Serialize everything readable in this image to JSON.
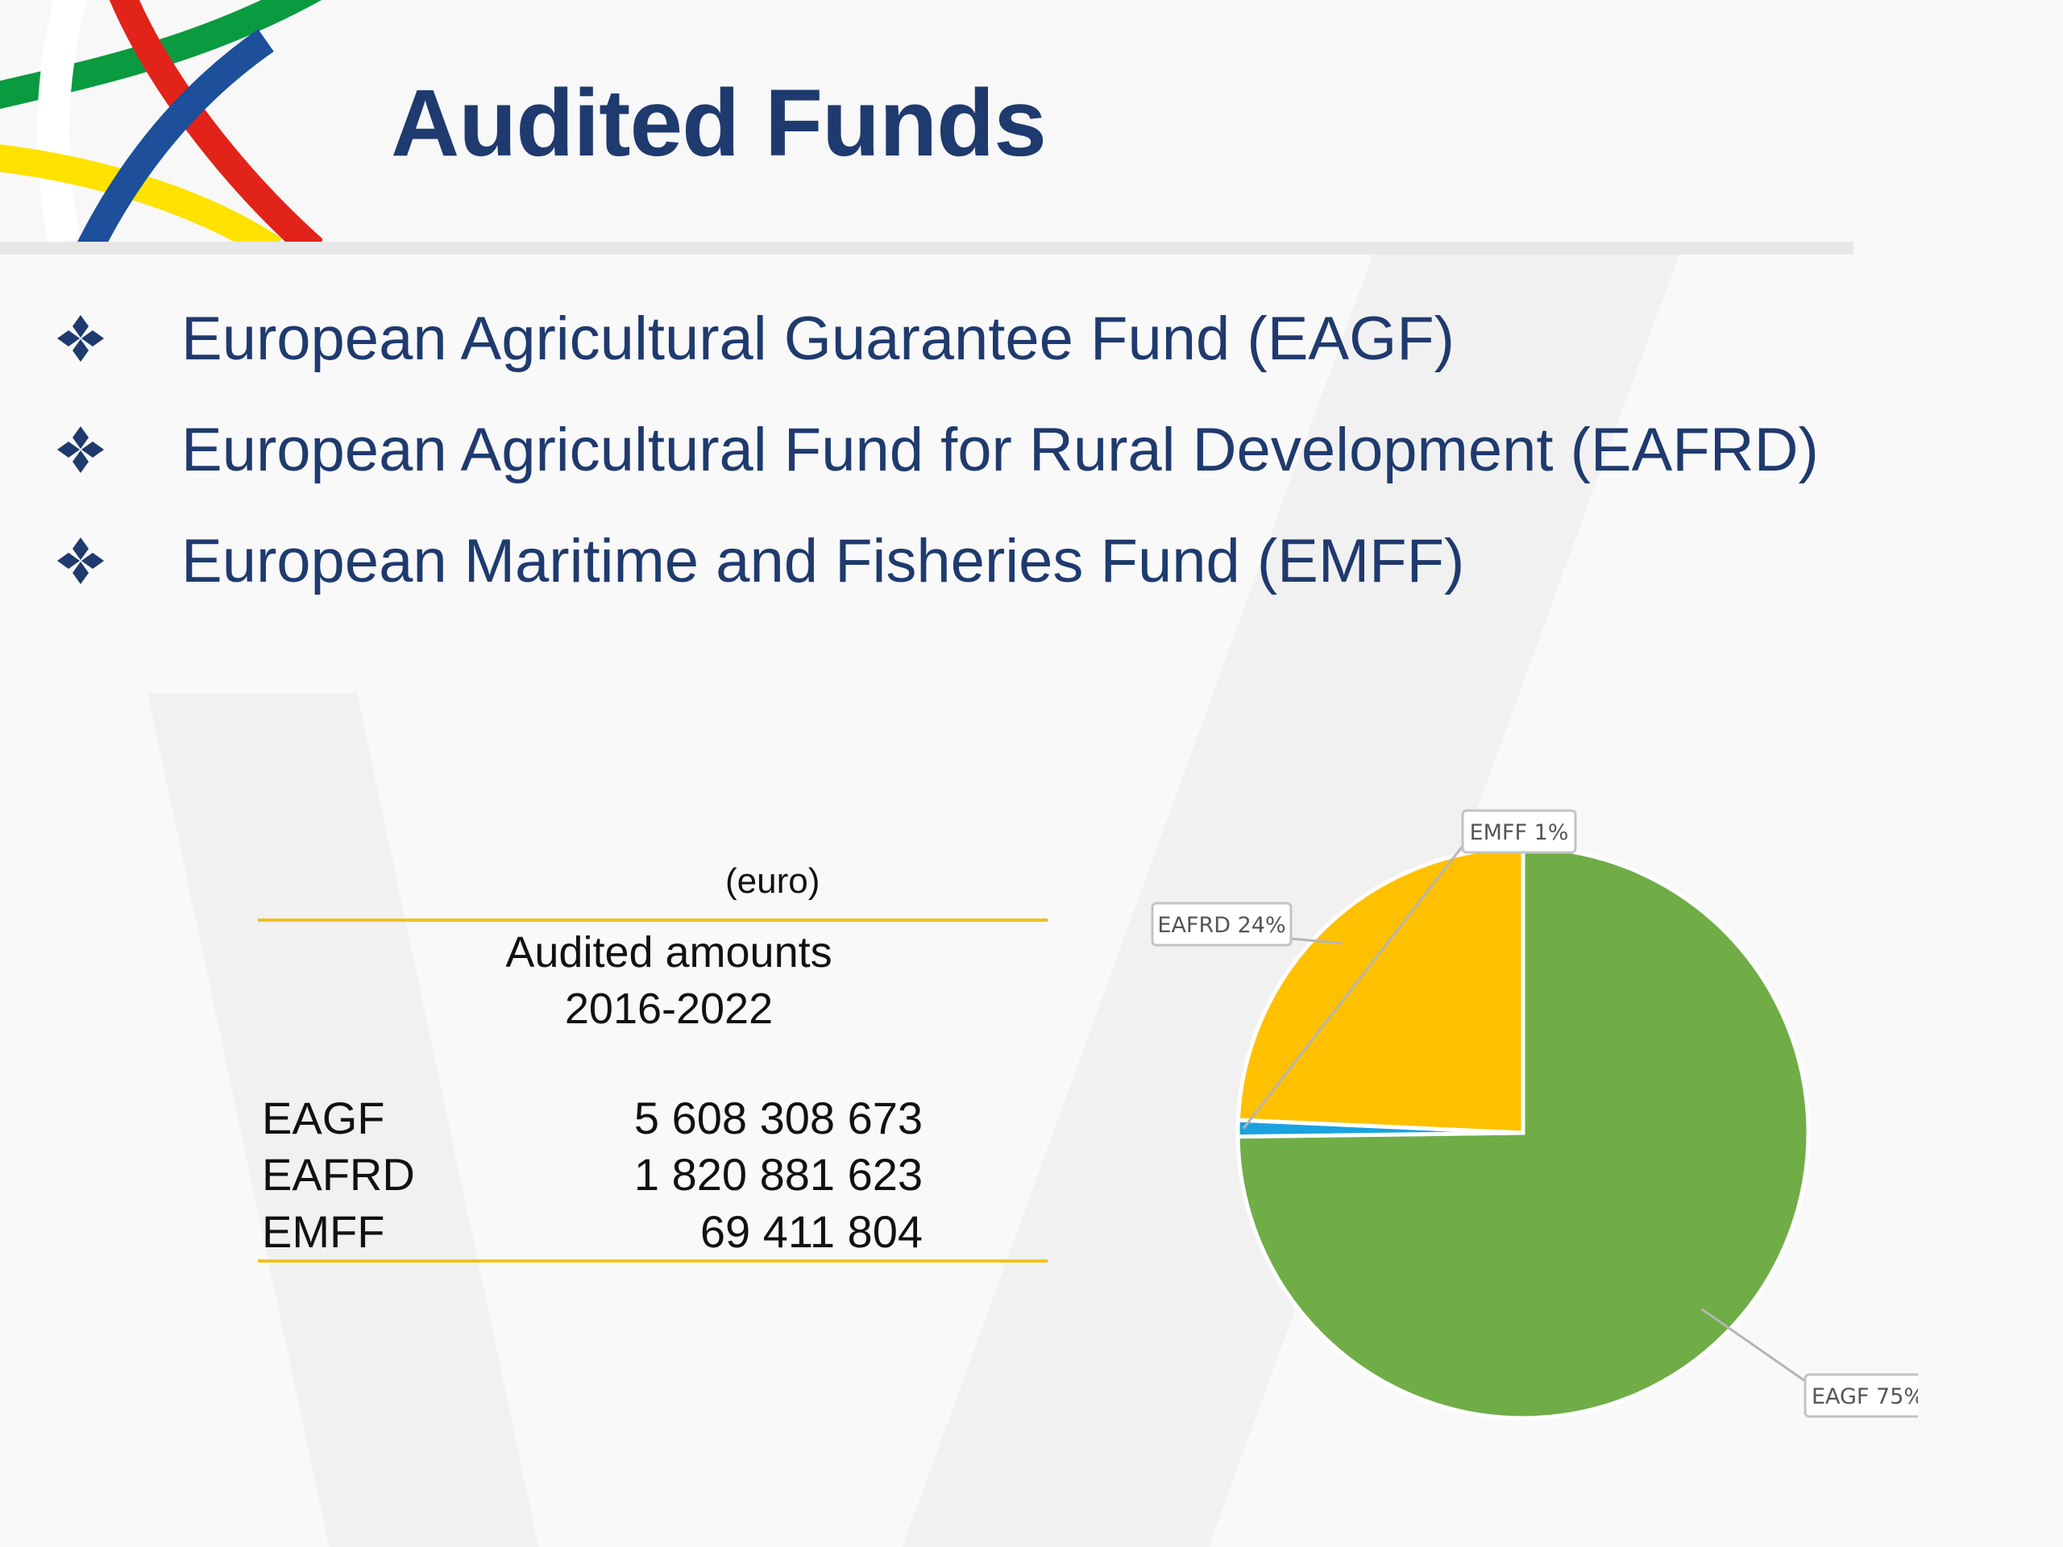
{
  "slide": {
    "title": "Audited Funds",
    "bullets": [
      "European Agricultural Guarantee Fund (EAGF)",
      "European Agricultural Fund for Rural Development (EAFRD)",
      "European Maritime and Fisheries Fund (EMFF)"
    ],
    "colors": {
      "title": "#1f3a6e",
      "rule": "#f3c01d",
      "logo_green": "#0a9a3f",
      "logo_red": "#e2231a",
      "logo_blue": "#1d4f9b",
      "logo_yellow": "#ffe200"
    }
  },
  "table": {
    "unit": "(euro)",
    "column_header_line1": "Audited amounts",
    "column_header_line2": "2016-2022",
    "rows": [
      {
        "name": "EAGF",
        "value": "5 608 308 673"
      },
      {
        "name": "EAFRD",
        "value": "1 820 881 623"
      },
      {
        "name": "EMFF",
        "value": "69 411 804"
      }
    ]
  },
  "chart_data": {
    "type": "pie",
    "title": "",
    "slices": [
      {
        "label": "EAGF",
        "value": 5608308673,
        "percent_label": "75%",
        "color": "#70ad47"
      },
      {
        "label": "EMFF",
        "value": 69411804,
        "percent_label": "1%",
        "color": "#1aa3df"
      },
      {
        "label": "EAFRD",
        "value": 1820881623,
        "percent_label": "24%",
        "color": "#ffc000"
      }
    ],
    "labels": {
      "EAGF": "EAGF 75%",
      "EAFRD": "EAFRD 24%",
      "EMFF": "EMFF 1%"
    },
    "legend": "none",
    "start_angle_deg": 0,
    "direction": "clockwise"
  }
}
